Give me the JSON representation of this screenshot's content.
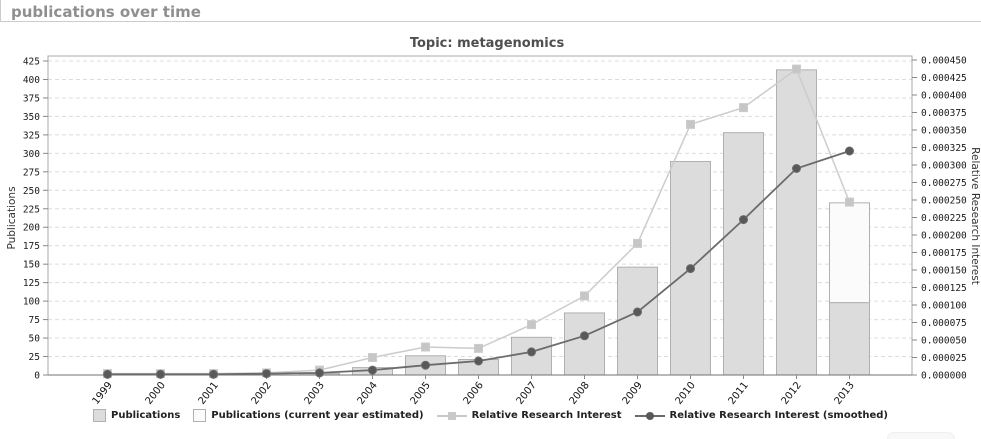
{
  "page": {
    "header": "publications over time"
  },
  "chart_data": {
    "type": "bar",
    "title": "Topic: metagenomics",
    "categories": [
      "1999",
      "2000",
      "2001",
      "2002",
      "2003",
      "2004",
      "2005",
      "2006",
      "2007",
      "2008",
      "2009",
      "2010",
      "2011",
      "2012",
      "2013"
    ],
    "series": [
      {
        "name": "Publications",
        "type": "bar",
        "axis": "left",
        "values": [
          1,
          1,
          1,
          1,
          2,
          10,
          26,
          21,
          51,
          84,
          146,
          289,
          328,
          413,
          98
        ]
      },
      {
        "name": "Publications (current year estimated)",
        "type": "bar-stacked",
        "axis": "left",
        "values": [
          0,
          0,
          0,
          0,
          0,
          0,
          0,
          0,
          0,
          0,
          0,
          0,
          0,
          0,
          135
        ]
      },
      {
        "name": "Relative Research Interest",
        "type": "line",
        "marker": "square",
        "axis": "right",
        "values": [
          2e-06,
          2e-06,
          2e-06,
          3e-06,
          7e-06,
          2.5e-05,
          4e-05,
          3.8e-05,
          7.2e-05,
          0.000113,
          0.000188,
          0.000358,
          0.000382,
          0.000437,
          0.000247
        ]
      },
      {
        "name": "Relative Research Interest (smoothed)",
        "type": "line",
        "marker": "circle",
        "axis": "right",
        "values": [
          1e-06,
          1e-06,
          1e-06,
          2e-06,
          3e-06,
          7e-06,
          1.4e-05,
          2e-05,
          3.3e-05,
          5.6e-05,
          9e-05,
          0.000152,
          0.000222,
          0.000295,
          0.00032
        ]
      }
    ],
    "y_left": {
      "label": "Publications",
      "min": 0,
      "max": 425,
      "step": 25
    },
    "y_right": {
      "label": "Relative Research Interest",
      "min": 0,
      "max": 0.00045,
      "step": 2.5e-05
    },
    "grid": true,
    "legend_position": "bottom",
    "colors": {
      "bar": "#dcdcdc",
      "bar_border": "#b0b0b0",
      "bar_estimated": "#fbfbfb",
      "rri_line": "#cccccc",
      "rri_marker": "#c6c6c6",
      "smooth_line": "#6b6b6b",
      "smooth_marker": "#595959",
      "grid": "#dcdcdc",
      "axis": "#a8a8a8",
      "baseline": "#707070",
      "header_text": "#8f8f8f",
      "title_text": "#4f4f4f"
    }
  }
}
